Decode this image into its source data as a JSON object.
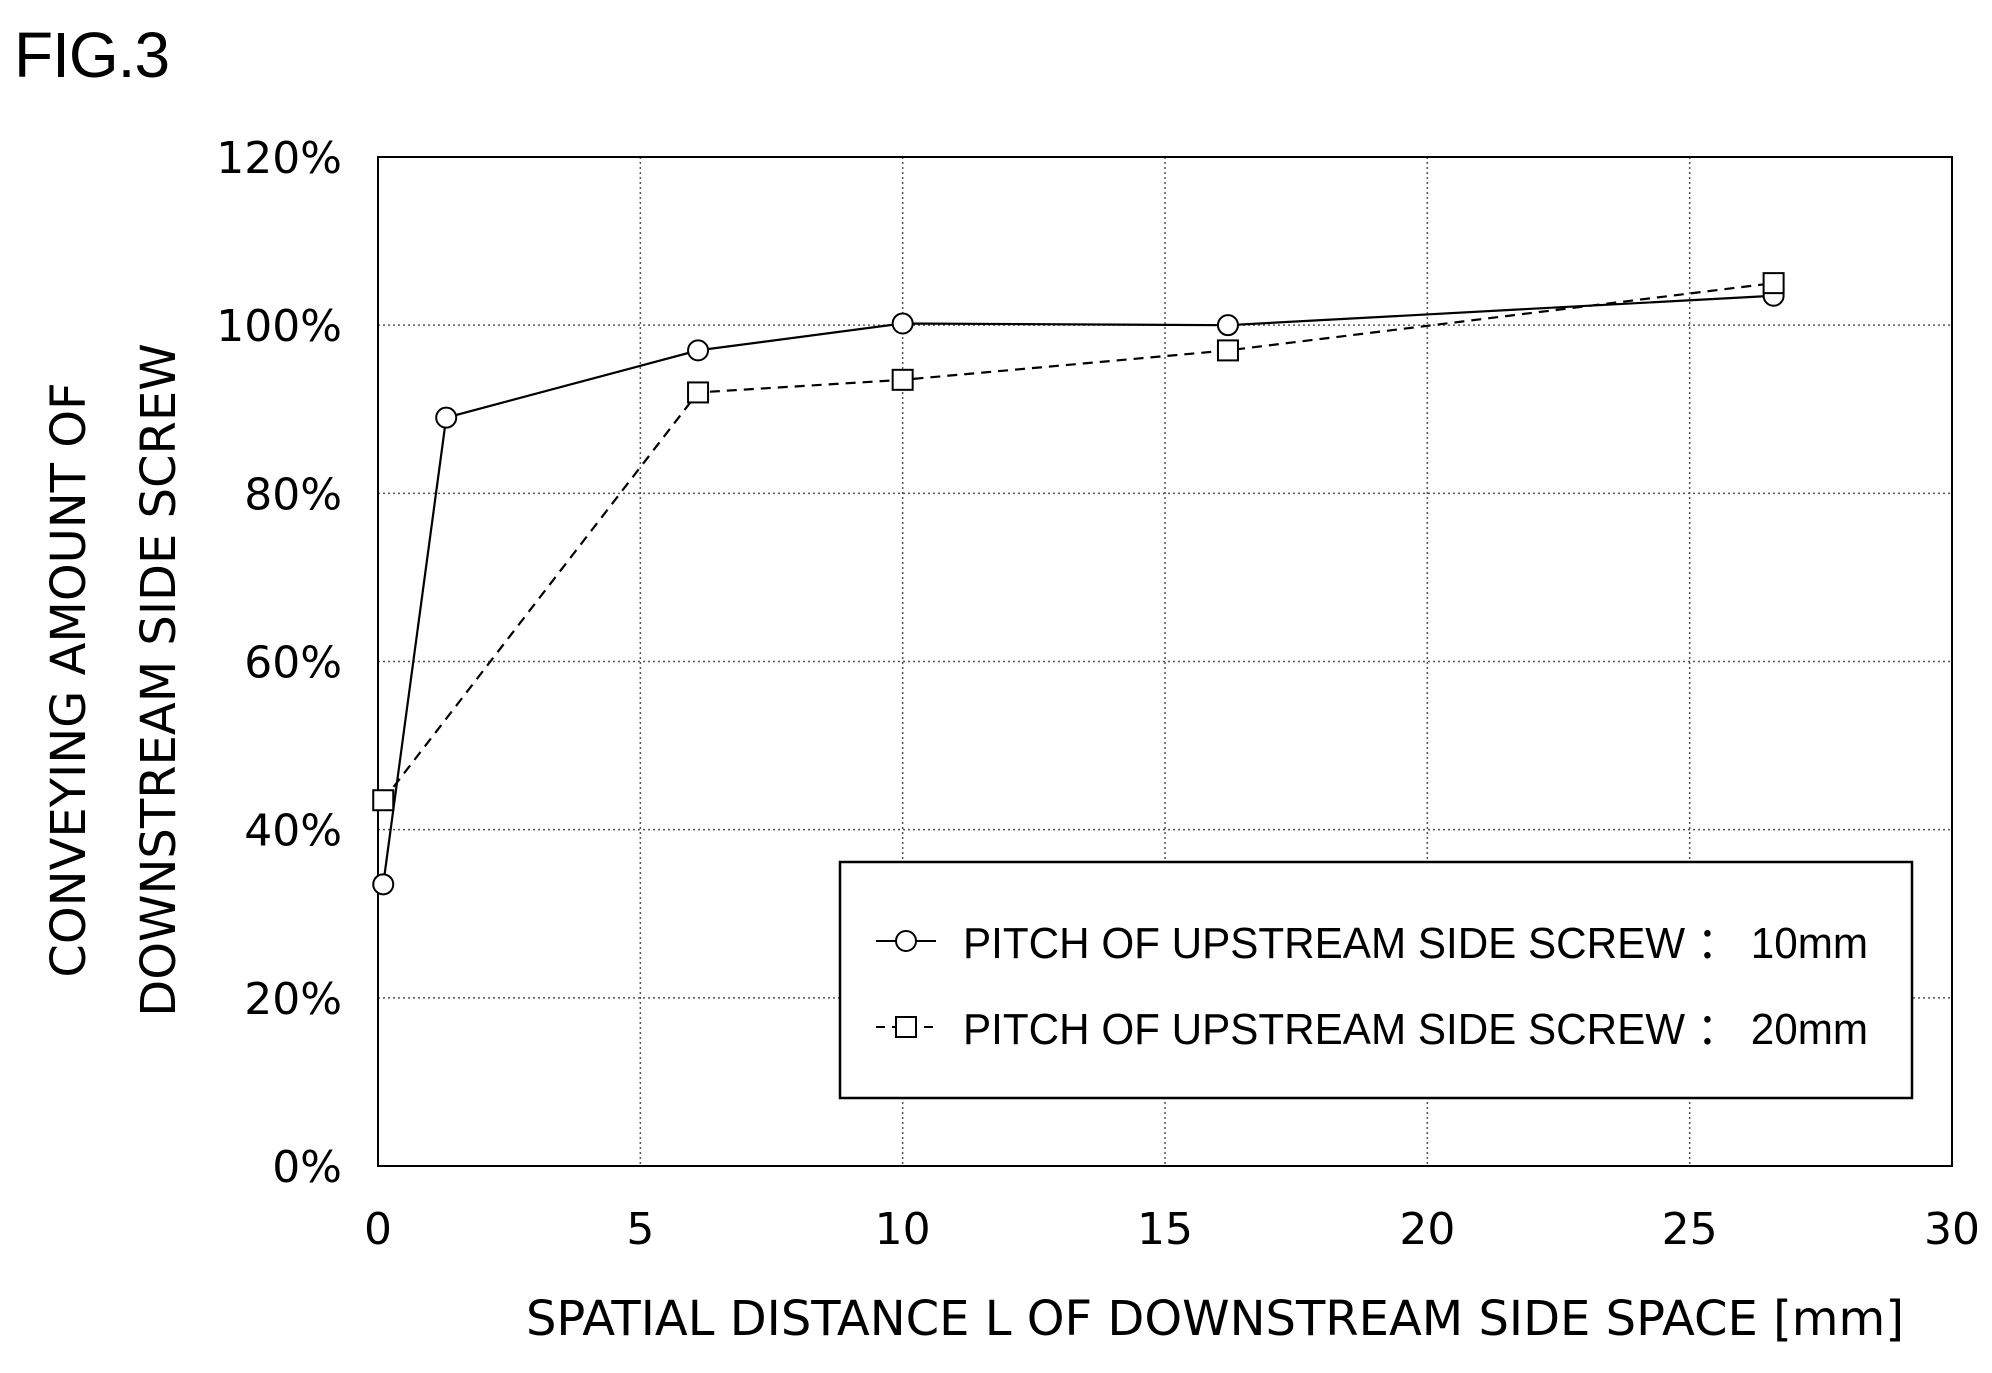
{
  "figure_label": "FIG.3",
  "chart_data": {
    "type": "line",
    "title": "",
    "xlabel": "SPATIAL DISTANCE L OF DOWNSTREAM SIDE SPACE [mm]",
    "ylabel_lines": [
      "CONVEYING AMOUNT OF",
      "DOWNSTREAM SIDE SCREW"
    ],
    "xlim": [
      0,
      30
    ],
    "ylim": [
      0,
      120
    ],
    "x_ticks": [
      0,
      5,
      10,
      15,
      20,
      25,
      30
    ],
    "x_tick_labels": [
      "0",
      "5",
      "10",
      "15",
      "20",
      "25",
      "30"
    ],
    "y_ticks": [
      0,
      20,
      40,
      60,
      80,
      100,
      120
    ],
    "y_tick_labels": [
      "0%",
      "20%",
      "40%",
      "60%",
      "80%",
      "100%",
      "120%"
    ],
    "grid": true,
    "grid_style": "dotted",
    "legend_position": "bottom-right",
    "series": [
      {
        "name": "PITCH OF UPSTREAM SIDE SCREW ： 10mm",
        "marker": "circle",
        "line_style": "solid",
        "color": "#000000",
        "x": [
          0.1,
          1.3,
          6.1,
          10.0,
          16.2,
          26.6
        ],
        "y": [
          33.5,
          89.0,
          97.0,
          100.2,
          100.0,
          103.5
        ]
      },
      {
        "name": "PITCH OF UPSTREAM SIDE SCREW ： 20mm",
        "marker": "square",
        "line_style": "dashed",
        "color": "#000000",
        "x": [
          0.1,
          6.1,
          10.0,
          16.2,
          26.6
        ],
        "y": [
          43.5,
          92.0,
          93.5,
          97.0,
          105.0
        ]
      }
    ]
  }
}
